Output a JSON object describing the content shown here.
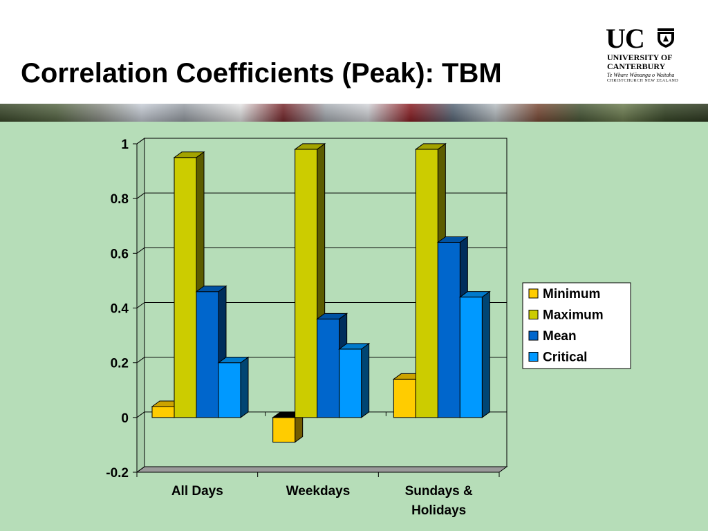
{
  "slide": {
    "title": "Correlation Coefficients (Peak): TBM",
    "logo": {
      "mark": "UC",
      "line1": "UNIVERSITY OF",
      "line2": "CANTERBURY",
      "line3": "Te Whare Wānanga o Waitaha",
      "line4": "CHRISTCHURCH NEW ZEALAND",
      "crest_icon": "university-crest-icon"
    },
    "banner_icon": "car-traffic-photo-strip",
    "background_color": "#b6ddb8"
  },
  "chart_data": {
    "type": "bar",
    "style": "3d-clustered-column",
    "title": "",
    "xlabel": "",
    "ylabel": "",
    "categories": [
      "All Days",
      "Weekdays",
      "Sundays & Holidays"
    ],
    "category_lines": [
      [
        "All Days"
      ],
      [
        "Weekdays"
      ],
      [
        "Sundays &",
        "Holidays"
      ]
    ],
    "series": [
      {
        "name": "Minimum",
        "color": "#ffcc00",
        "values": [
          0.04,
          -0.09,
          0.14
        ]
      },
      {
        "name": "Maximum",
        "color": "#cccc00",
        "values": [
          0.95,
          0.98,
          0.98
        ]
      },
      {
        "name": "Mean",
        "color": "#0066cc",
        "values": [
          0.46,
          0.36,
          0.64
        ]
      },
      {
        "name": "Critical",
        "color": "#0099ff",
        "values": [
          0.2,
          0.25,
          0.44
        ]
      }
    ],
    "ylim": [
      -0.2,
      1
    ],
    "yticks": [
      "-0.2",
      "0",
      "0.2",
      "0.4",
      "0.6",
      "0.8",
      "1"
    ],
    "grid": true,
    "legend": "right"
  }
}
